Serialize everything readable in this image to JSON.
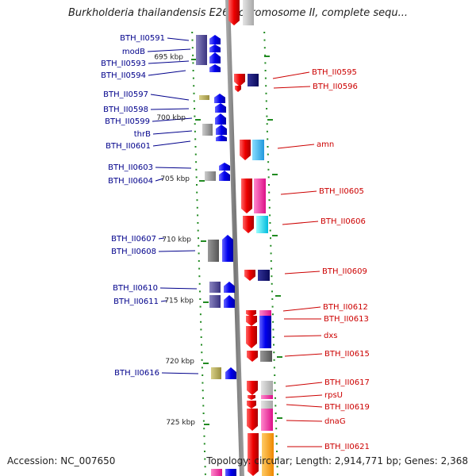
{
  "title": "Burkholderia thailandensis E264 chromosome II, complete sequ...",
  "footer": {
    "accession": "Accession: NC_007650",
    "topology": "Topology: circular; Length: 2,914,771 bp; Genes: 2,368"
  },
  "kbp_markers": [
    "695 kbp",
    "700 kbp",
    "705 kbp",
    "710 kbp",
    "715 kbp",
    "720 kbp",
    "725 kbp"
  ],
  "genes_left": [
    "BTH_II0591",
    "modB",
    "BTH_II0593",
    "BTH_II0594",
    "BTH_II0597",
    "BTH_II0598",
    "BTH_II0599",
    "thrB",
    "BTH_II0601",
    "BTH_II0603",
    "BTH_II0604",
    "BTH_II0607",
    "BTH_II0608",
    "BTH_II0610",
    "BTH_II0611",
    "BTH_II0616"
  ],
  "genes_right": [
    "BTH_II0595",
    "BTH_II0596",
    "amn",
    "BTH_II0605",
    "BTH_II0606",
    "BTH_II0609",
    "BTH_II0612",
    "BTH_II0613",
    "dxs",
    "BTH_II0615",
    "BTH_II0617",
    "rpsU",
    "BTH_II0619",
    "dnaG",
    "BTH_II0621"
  ],
  "colors": {
    "left_label": "#00008b",
    "right_label": "#cc0000",
    "forward_gene": "#1010ee",
    "reverse_gene": "#ee1010",
    "backbone": "#888888",
    "tick": "#228b22"
  }
}
